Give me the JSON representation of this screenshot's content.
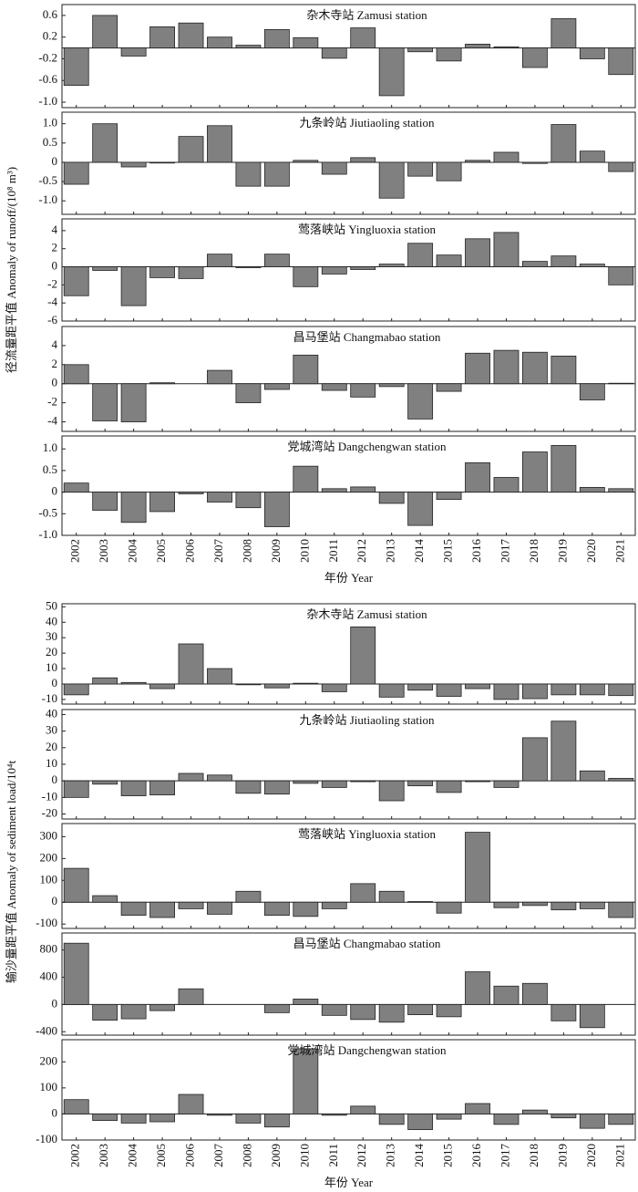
{
  "chart_data": [
    {
      "type": "bar",
      "title": "杂木寺站 Zamusi station",
      "color": "#808080",
      "values": [
        -0.69,
        0.6,
        -0.15,
        0.39,
        0.46,
        0.2,
        0.05,
        0.34,
        0.19,
        -0.19,
        0.37,
        -0.88,
        -0.07,
        -0.24,
        0.07,
        0.02,
        -0.36,
        0.54,
        -0.2,
        -0.49
      ],
      "ylim": [
        -1.1,
        0.8
      ],
      "yticks": [
        0.6,
        0.2,
        -0.2,
        -0.6,
        {
          "value": -1,
          "label": "-1.0"
        }
      ]
    },
    {
      "type": "bar",
      "title": "九条岭站 Jiutiaoling station",
      "color": "#808080",
      "values": [
        -0.57,
        1.0,
        -0.12,
        -0.02,
        0.67,
        0.95,
        -0.62,
        -0.62,
        0.05,
        -0.31,
        0.12,
        -0.93,
        -0.36,
        -0.48,
        0.05,
        0.26,
        -0.03,
        0.98,
        0.29,
        -0.24
      ],
      "ylim": [
        -1.35,
        1.3
      ],
      "yticks": [
        {
          "value": 1,
          "label": "1.0"
        },
        0.5,
        0,
        -0.5,
        {
          "value": -1,
          "label": "-1.0"
        }
      ]
    },
    {
      "type": "bar",
      "title": "莺落峡站 Yingluoxia station",
      "color": "#808080",
      "ylabel": "径流量距平值 Anomaly of runoff/(10⁸ m³)",
      "values": [
        -3.2,
        -0.4,
        -4.3,
        -1.2,
        -1.3,
        1.4,
        -0.1,
        1.4,
        -2.2,
        -0.8,
        -0.3,
        0.3,
        2.6,
        1.3,
        3.1,
        3.8,
        0.6,
        1.2,
        0.3,
        -2.0
      ],
      "ylim": [
        -6,
        5.3
      ],
      "yticks": [
        4,
        2,
        0,
        -2,
        -4,
        -6
      ]
    },
    {
      "type": "bar",
      "title": "昌马堡站 Changmabao station",
      "color": "#808080",
      "values": [
        2.0,
        -3.9,
        -4.0,
        0.1,
        0,
        1.4,
        -2.0,
        -0.6,
        3.0,
        -0.7,
        -1.4,
        -0.3,
        -3.7,
        -0.8,
        3.2,
        3.5,
        3.3,
        2.9,
        -1.7,
        0.05
      ],
      "ylim": [
        -5,
        6
      ],
      "yticks": [
        4,
        2,
        0,
        -2,
        -4
      ]
    },
    {
      "type": "bar",
      "title": "党城湾站 Dangchengwan station",
      "color": "#808080",
      "xlabel": "年份 Year",
      "categories": [
        "2002",
        "2003",
        "2004",
        "2005",
        "2006",
        "2007",
        "2008",
        "2009",
        "2010",
        "2011",
        "2012",
        "2013",
        "2014",
        "2015",
        "2016",
        "2017",
        "2018",
        "2019",
        "2020",
        "2021"
      ],
      "values": [
        0.21,
        -0.42,
        -0.7,
        -0.45,
        -0.04,
        -0.23,
        -0.36,
        -0.8,
        0.6,
        0.08,
        0.12,
        -0.26,
        -0.77,
        -0.17,
        0.68,
        0.34,
        0.93,
        1.08,
        0.11,
        0.08
      ],
      "ylim": [
        -1.0,
        1.3
      ],
      "yticks": [
        {
          "value": 1,
          "label": "1.0"
        },
        0.5,
        0,
        -0.5,
        {
          "value": -1,
          "label": "-1.0"
        }
      ]
    },
    {
      "type": "bar",
      "title": "杂木寺站 Zamusi station",
      "color": "#808080",
      "values": [
        -7,
        4,
        1,
        -3,
        26,
        10,
        -0.5,
        -2.5,
        0.5,
        -5,
        37,
        -8.5,
        -4,
        -8,
        -3,
        -10,
        -9.5,
        -7,
        -7,
        -7.5
      ],
      "ylim": [
        -13,
        52
      ],
      "yticks": [
        50,
        40,
        30,
        20,
        10,
        0,
        -10
      ]
    },
    {
      "type": "bar",
      "title": "九条岭站 Jiutiaoling station",
      "color": "#808080",
      "values": [
        -10,
        -2,
        -9,
        -8.5,
        4.5,
        3.5,
        -7.5,
        -8,
        -1.5,
        -4,
        -0.5,
        -12,
        -3,
        -7,
        -0.5,
        -4,
        26,
        36,
        6,
        1.5
      ],
      "ylim": [
        -23,
        43
      ],
      "yticks": [
        40,
        30,
        20,
        10,
        0,
        -10,
        -20
      ]
    },
    {
      "type": "bar",
      "title": "莺落峡站 Yingluoxia station",
      "color": "#808080",
      "ylabel": "输沙量距平值 Anomaly of sediment load/10⁴t",
      "values": [
        155,
        30,
        -60,
        -70,
        -30,
        -55,
        50,
        -60,
        -65,
        -30,
        85,
        50,
        3,
        -50,
        320,
        -25,
        -15,
        -35,
        -30,
        -70
      ],
      "ylim": [
        -120,
        360
      ],
      "yticks": [
        300,
        200,
        100,
        0,
        -100
      ]
    },
    {
      "type": "bar",
      "title": "昌马堡站 Changmabao station",
      "color": "#808080",
      "values": [
        900,
        -230,
        -210,
        -90,
        230,
        0,
        0,
        -120,
        80,
        -160,
        -220,
        -260,
        -150,
        -180,
        480,
        270,
        310,
        -240,
        -340,
        0
      ],
      "ylim": [
        -450,
        1050
      ],
      "yticks": [
        800,
        400,
        0,
        -400
      ]
    },
    {
      "type": "bar",
      "title": "党城湾站 Dangchengwan station",
      "color": "#808080",
      "xlabel": "年份 Year",
      "categories": [
        "2002",
        "2003",
        "2004",
        "2005",
        "2006",
        "2007",
        "2008",
        "2009",
        "2010",
        "2011",
        "2012",
        "2013",
        "2014",
        "2015",
        "2016",
        "2017",
        "2018",
        "2019",
        "2020",
        "2021"
      ],
      "values": [
        55,
        -25,
        -35,
        -30,
        75,
        -5,
        -35,
        -50,
        250,
        -5,
        30,
        -40,
        -60,
        -20,
        40,
        -40,
        15,
        -15,
        -55,
        -40
      ],
      "ylim": [
        -100,
        285
      ],
      "yticks": [
        200,
        100,
        0,
        -100
      ]
    }
  ]
}
